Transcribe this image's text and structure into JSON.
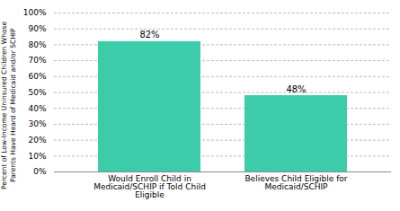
{
  "chart_data": {
    "type": "bar",
    "categories": [
      "Would Enroll Child in\nMedicaid/SCHIP if Told Child\nEligible",
      "Believes Child Eligible for\nMedicaid/SCHIP"
    ],
    "values": [
      82,
      48
    ],
    "value_labels": [
      "82%",
      "48%"
    ],
    "data_labels": true,
    "color": "#3dccaa",
    "ylabel": "Percent of Low-Income Uninsured Children Whose\nParents Have Heard of Medicaid and/or SCHIP",
    "ylim": [
      0,
      100
    ],
    "yticks": [
      {
        "value": 0,
        "label": "0%"
      },
      {
        "value": 10,
        "label": "10%"
      },
      {
        "value": 20,
        "label": "20%"
      },
      {
        "value": 30,
        "label": "30%"
      },
      {
        "value": 40,
        "label": "40%"
      },
      {
        "value": 50,
        "label": "50%"
      },
      {
        "value": 60,
        "label": "60%"
      },
      {
        "value": 70,
        "label": "70%"
      },
      {
        "value": 80,
        "label": "80%"
      },
      {
        "value": 90,
        "label": "90%"
      },
      {
        "value": 100,
        "label": "100%"
      }
    ],
    "grid": true
  }
}
